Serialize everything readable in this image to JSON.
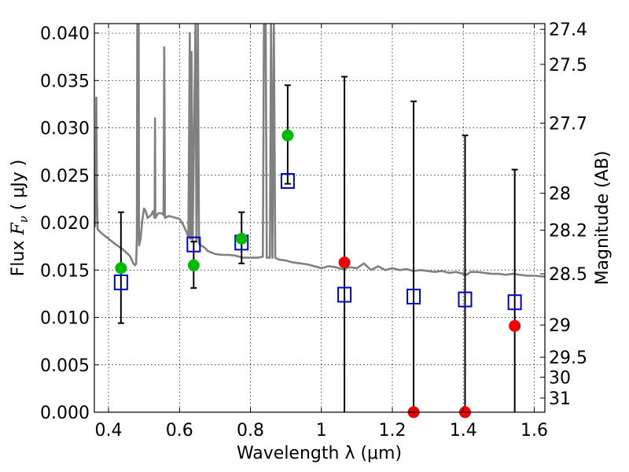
{
  "chart_data": {
    "type": "scatter",
    "title": "",
    "xlabel": "Wavelength  λ (μm)",
    "ylabel": "Flux  Fν  ( μJy )",
    "ylabel_parts": {
      "prefix": "Flux  ",
      "symbol": "F",
      "subscript": "ν",
      "suffix": "  ( μJy )"
    },
    "y2label": "Magnitude (AB)",
    "xlim": [
      0.36,
      1.63
    ],
    "ylim": [
      0.0,
      0.041
    ],
    "grid": true,
    "xticks": [
      {
        "value": 0.4,
        "label": "0.4"
      },
      {
        "value": 0.6,
        "label": "0.6"
      },
      {
        "value": 0.8,
        "label": "0.8"
      },
      {
        "value": 1.0,
        "label": "1"
      },
      {
        "value": 1.2,
        "label": "1.2"
      },
      {
        "value": 1.4,
        "label": "1.4"
      },
      {
        "value": 1.6,
        "label": "1.6"
      }
    ],
    "yticks": [
      {
        "value": 0.0,
        "label": "0.000"
      },
      {
        "value": 0.005,
        "label": "0.005"
      },
      {
        "value": 0.01,
        "label": "0.010"
      },
      {
        "value": 0.015,
        "label": "0.015"
      },
      {
        "value": 0.02,
        "label": "0.020"
      },
      {
        "value": 0.025,
        "label": "0.025"
      },
      {
        "value": 0.03,
        "label": "0.030"
      },
      {
        "value": 0.035,
        "label": "0.035"
      },
      {
        "value": 0.04,
        "label": "0.040"
      }
    ],
    "y2ticks": [
      {
        "label": "27.4",
        "flux": 0.0404
      },
      {
        "label": "27.5",
        "flux": 0.0367
      },
      {
        "label": "27.7",
        "flux": 0.0305
      },
      {
        "label": "28",
        "flux": 0.0231
      },
      {
        "label": "28.2",
        "flux": 0.0192
      },
      {
        "label": "28.5",
        "flux": 0.0146
      },
      {
        "label": "29",
        "flux": 0.0092
      },
      {
        "label": "29.5",
        "flux": 0.0058
      },
      {
        "label": "30",
        "flux": 0.0037
      },
      {
        "label": "31",
        "flux": 0.0015
      }
    ],
    "model_spectrum": {
      "color": "#808080",
      "points": [
        [
          0.36,
          0.0197
        ],
        [
          0.362,
          0.0196
        ],
        [
          0.364,
          0.0245
        ],
        [
          0.3655,
          0.0332
        ],
        [
          0.367,
          0.024
        ],
        [
          0.369,
          0.0193
        ],
        [
          0.38,
          0.0189
        ],
        [
          0.4,
          0.0183
        ],
        [
          0.42,
          0.0177
        ],
        [
          0.44,
          0.0172
        ],
        [
          0.46,
          0.0165
        ],
        [
          0.47,
          0.0157
        ],
        [
          0.475,
          0.0155
        ],
        [
          0.478,
          0.0157
        ],
        [
          0.48,
          0.0185
        ],
        [
          0.481,
          0.041
        ],
        [
          0.485,
          0.041
        ],
        [
          0.486,
          0.0176
        ],
        [
          0.49,
          0.0182
        ],
        [
          0.495,
          0.0202
        ],
        [
          0.5,
          0.0215
        ],
        [
          0.505,
          0.0212
        ],
        [
          0.51,
          0.0205
        ],
        [
          0.52,
          0.0208
        ],
        [
          0.525,
          0.0212
        ],
        [
          0.53,
          0.0205
        ],
        [
          0.531,
          0.031
        ],
        [
          0.532,
          0.0205
        ],
        [
          0.54,
          0.021
        ],
        [
          0.55,
          0.021
        ],
        [
          0.555,
          0.0208
        ],
        [
          0.557,
          0.0385
        ],
        [
          0.559,
          0.0205
        ],
        [
          0.57,
          0.0207
        ],
        [
          0.58,
          0.0206
        ],
        [
          0.6,
          0.0204
        ],
        [
          0.61,
          0.0198
        ],
        [
          0.62,
          0.019
        ],
        [
          0.625,
          0.0185
        ],
        [
          0.629,
          0.04
        ],
        [
          0.631,
          0.0183
        ],
        [
          0.634,
          0.038
        ],
        [
          0.637,
          0.018
        ],
        [
          0.645,
          0.041
        ],
        [
          0.648,
          0.018
        ],
        [
          0.652,
          0.041
        ],
        [
          0.655,
          0.0178
        ],
        [
          0.66,
          0.0176
        ],
        [
          0.67,
          0.0174
        ],
        [
          0.68,
          0.017
        ],
        [
          0.7,
          0.0167
        ],
        [
          0.72,
          0.0166
        ],
        [
          0.74,
          0.0166
        ],
        [
          0.76,
          0.0165
        ],
        [
          0.78,
          0.0163
        ],
        [
          0.8,
          0.0163
        ],
        [
          0.82,
          0.0163
        ],
        [
          0.835,
          0.0164
        ],
        [
          0.838,
          0.041
        ],
        [
          0.843,
          0.041
        ],
        [
          0.846,
          0.0163
        ],
        [
          0.855,
          0.0163
        ],
        [
          0.858,
          0.041
        ],
        [
          0.862,
          0.0163
        ],
        [
          0.866,
          0.041
        ],
        [
          0.87,
          0.0163
        ],
        [
          0.88,
          0.0161
        ],
        [
          0.9,
          0.016
        ],
        [
          0.92,
          0.0158
        ],
        [
          0.94,
          0.0157
        ],
        [
          0.96,
          0.0156
        ],
        [
          0.98,
          0.0154
        ],
        [
          1.0,
          0.0152
        ],
        [
          1.02,
          0.0154
        ],
        [
          1.04,
          0.0153
        ],
        [
          1.06,
          0.0151
        ],
        [
          1.08,
          0.0153
        ],
        [
          1.1,
          0.0152
        ],
        [
          1.12,
          0.0157
        ],
        [
          1.14,
          0.015
        ],
        [
          1.16,
          0.0154
        ],
        [
          1.18,
          0.015
        ],
        [
          1.2,
          0.0152
        ],
        [
          1.22,
          0.015
        ],
        [
          1.24,
          0.0151
        ],
        [
          1.26,
          0.0149
        ],
        [
          1.28,
          0.015
        ],
        [
          1.3,
          0.0149
        ],
        [
          1.32,
          0.0148
        ],
        [
          1.34,
          0.0149
        ],
        [
          1.36,
          0.0147
        ],
        [
          1.38,
          0.0148
        ],
        [
          1.4,
          0.0146
        ],
        [
          1.41,
          0.0145
        ],
        [
          1.42,
          0.0148
        ],
        [
          1.44,
          0.0148
        ],
        [
          1.46,
          0.0147
        ],
        [
          1.48,
          0.0146
        ],
        [
          1.5,
          0.0146
        ],
        [
          1.52,
          0.0145
        ],
        [
          1.54,
          0.0146
        ],
        [
          1.56,
          0.0145
        ],
        [
          1.58,
          0.0144
        ],
        [
          1.6,
          0.0144
        ],
        [
          1.63,
          0.0143
        ]
      ]
    },
    "error_bars": [
      {
        "x": 0.435,
        "ylow": 0.0094,
        "yhigh": 0.0211
      },
      {
        "x": 0.64,
        "ylow": 0.0131,
        "yhigh": 0.018
      },
      {
        "x": 0.775,
        "ylow": 0.0157,
        "yhigh": 0.0211
      },
      {
        "x": 0.905,
        "ylow": 0.0241,
        "yhigh": 0.0345
      },
      {
        "x": 1.065,
        "ylow": 0.0,
        "yhigh": 0.0354
      },
      {
        "x": 1.26,
        "ylow": 0.0,
        "yhigh": 0.0328
      },
      {
        "x": 1.405,
        "ylow": 0.0,
        "yhigh": 0.0292
      },
      {
        "x": 1.545,
        "ylow": 0.0,
        "yhigh": 0.0256
      }
    ],
    "series": [
      {
        "marker": "square",
        "color": "#0000cc",
        "points": [
          {
            "x": 0.435,
            "y": 0.0137
          },
          {
            "x": 0.64,
            "y": 0.0177
          },
          {
            "x": 0.775,
            "y": 0.0179
          },
          {
            "x": 0.905,
            "y": 0.0244
          },
          {
            "x": 1.065,
            "y": 0.0124
          },
          {
            "x": 1.26,
            "y": 0.0122
          },
          {
            "x": 1.405,
            "y": 0.0119
          },
          {
            "x": 1.545,
            "y": 0.0116
          }
        ]
      },
      {
        "marker": "circle",
        "color": "#00bb00",
        "points": [
          {
            "x": 0.435,
            "y": 0.0152
          },
          {
            "x": 0.64,
            "y": 0.0155
          },
          {
            "x": 0.775,
            "y": 0.0183
          },
          {
            "x": 0.905,
            "y": 0.0292
          }
        ]
      },
      {
        "marker": "circle",
        "color": "#ee0000",
        "points": [
          {
            "x": 1.065,
            "y": 0.0158
          },
          {
            "x": 1.26,
            "y": 0.0
          },
          {
            "x": 1.405,
            "y": 0.0
          },
          {
            "x": 1.545,
            "y": 0.0091
          }
        ]
      }
    ]
  }
}
